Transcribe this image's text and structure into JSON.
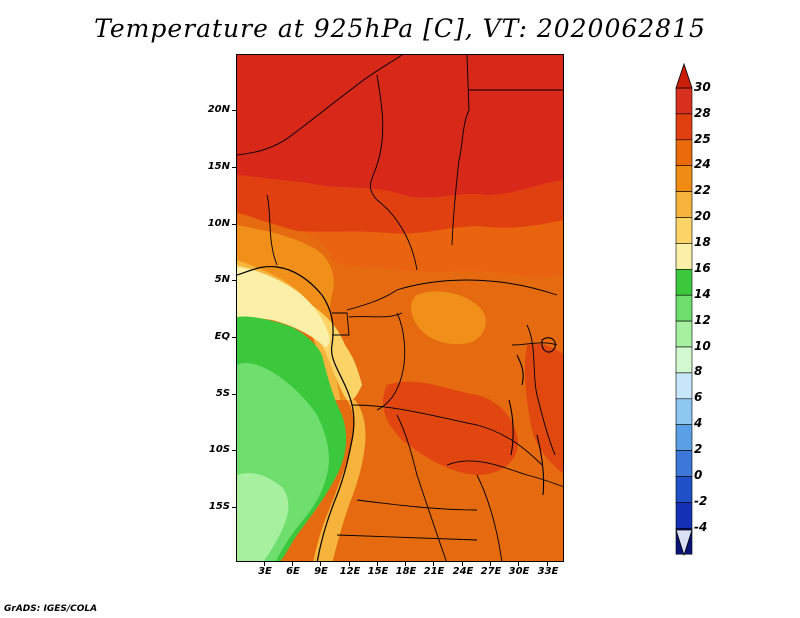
{
  "title": "Temperature at 925hPa [C], VT: 2020062815",
  "credit": "GrADS: IGES/COLA",
  "map": {
    "lat_ticks": [
      "20N",
      "15N",
      "10N",
      "5N",
      "EQ",
      "5S",
      "10S",
      "15S"
    ],
    "lon_ticks": [
      "3E",
      "6E",
      "9E",
      "12E",
      "15E",
      "18E",
      "21E",
      "24E",
      "27E",
      "30E",
      "33E"
    ]
  },
  "colorbar": {
    "labels": [
      "30",
      "28",
      "25",
      "24",
      "22",
      "20",
      "18",
      "16",
      "14",
      "12",
      "10",
      "8",
      "6",
      "4",
      "2",
      "0",
      "-2",
      "-4"
    ],
    "colors": [
      "#d7301f",
      "#e04010",
      "#eb6a0c",
      "#f08c14",
      "#f6b43c",
      "#fbd468",
      "#fcf0a8",
      "#3cc83c",
      "#6ede6e",
      "#a6f0a0",
      "#d2f8d0",
      "#c8e6fa",
      "#8cc8f0",
      "#5aa0e6",
      "#3c78d8",
      "#2050c8",
      "#1430b4",
      "#0a1478"
    ],
    "top_arrow_color": "#c81e0a",
    "bottom_arrow_color": "#dce0f4"
  }
}
